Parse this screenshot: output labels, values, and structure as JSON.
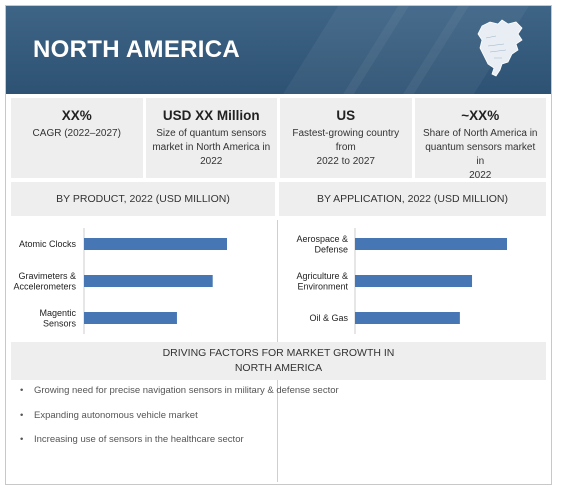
{
  "header": {
    "title": "NORTH AMERICA",
    "map_icon": "north-america-map-icon"
  },
  "stats": [
    {
      "value": "XX%",
      "desc_lines": [
        "CAGR (2022–2027)"
      ]
    },
    {
      "value": "USD XX Million",
      "desc_lines": [
        "Size of quantum sensors",
        "market in North America in",
        "2022"
      ]
    },
    {
      "value": "US",
      "desc_lines": [
        "Fastest-growing country from",
        "2022 to 2027"
      ]
    },
    {
      "value": "~XX%",
      "desc_lines": [
        "Share of North America in",
        "quantum sensors market in",
        "2022"
      ]
    }
  ],
  "chart_data": [
    {
      "type": "bar",
      "orientation": "horizontal",
      "title": "BY PRODUCT, 2022 (USD MILLION)",
      "categories": [
        [
          "Atomic Clocks"
        ],
        [
          "Gravimeters &",
          "Accelerometers"
        ],
        [
          "Magentic",
          "Sensors"
        ]
      ],
      "values": [
        100,
        90,
        65
      ],
      "xlim": [
        0,
        110
      ],
      "color": "#4676b4",
      "grid": false,
      "axis_labels_shown": false
    },
    {
      "type": "bar",
      "orientation": "horizontal",
      "title": "BY APPLICATION, 2022 (USD MILLION)",
      "categories": [
        [
          "Aerospace &",
          "Defense"
        ],
        [
          "Agriculture &",
          "Environment"
        ],
        [
          "Oil & Gas"
        ]
      ],
      "values": [
        100,
        77,
        69
      ],
      "xlim": [
        0,
        110
      ],
      "color": "#4676b4",
      "grid": false,
      "axis_labels_shown": false
    }
  ],
  "drivers": {
    "title_lines": [
      "DRIVING FACTORS FOR MARKET GROWTH IN",
      "NORTH AMERICA"
    ],
    "items": [
      "Growing need for precise navigation sensors in military & defense sector",
      "Expanding autonomous vehicle market",
      "Increasing use of sensors in the healthcare sector"
    ]
  }
}
